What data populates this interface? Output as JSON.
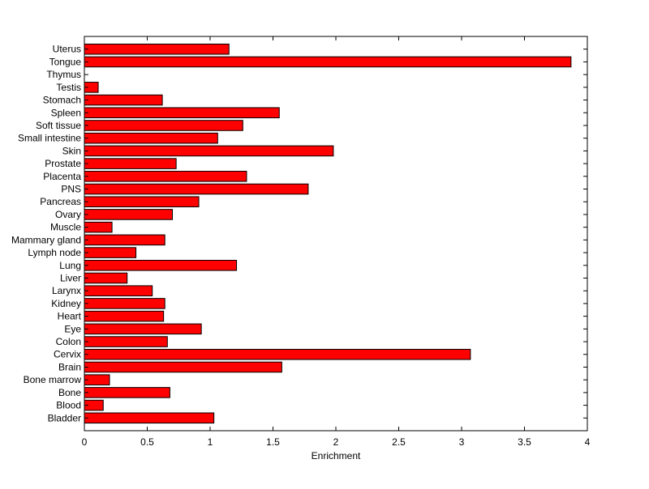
{
  "chart_data": {
    "type": "bar",
    "orientation": "horizontal",
    "title": "",
    "xlabel": "Enrichment",
    "ylabel": "",
    "xlim": [
      0,
      4
    ],
    "x_ticks": [
      "0",
      "0.5",
      "1",
      "1.5",
      "2",
      "2.5",
      "3",
      "3.5",
      "4"
    ],
    "grid": false,
    "bar_color": "#ff0000",
    "bar_edge_color": "#000000",
    "categories": [
      "Bladder",
      "Blood",
      "Bone",
      "Bone marrow",
      "Brain",
      "Cervix",
      "Colon",
      "Eye",
      "Heart",
      "Kidney",
      "Larynx",
      "Liver",
      "Lung",
      "Lymph node",
      "Mammary gland",
      "Muscle",
      "Ovary",
      "Pancreas",
      "PNS",
      "Placenta",
      "Prostate",
      "Skin",
      "Small intestine",
      "Soft tissue",
      "Spleen",
      "Stomach",
      "Testis",
      "Thymus",
      "Tongue",
      "Uterus"
    ],
    "values": [
      1.03,
      0.15,
      0.68,
      0.2,
      1.57,
      3.07,
      0.66,
      0.93,
      0.63,
      0.64,
      0.54,
      0.34,
      1.21,
      0.41,
      0.64,
      0.22,
      0.7,
      0.91,
      1.78,
      1.29,
      0.73,
      1.98,
      1.06,
      1.26,
      1.55,
      0.62,
      0.11,
      0.0,
      3.87,
      1.15
    ]
  }
}
